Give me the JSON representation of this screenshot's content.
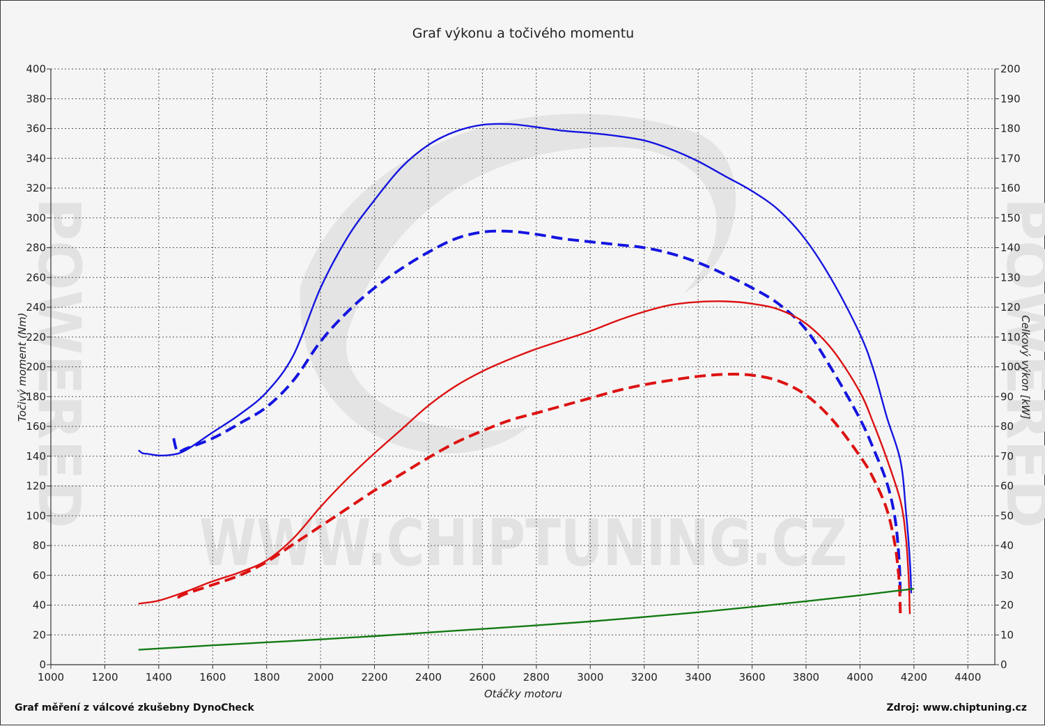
{
  "chart_data": {
    "type": "line",
    "title": "Graf výkonu a točivého momentu",
    "xlabel": "Otáčky motoru",
    "ylabel_left": "Točivý moment (Nm)",
    "ylabel_right": "Celkový výkon [kW]",
    "xlim": [
      1000,
      4500
    ],
    "ylim_left": [
      0,
      400
    ],
    "ylim_right": [
      0,
      200
    ],
    "x_ticks": [
      1000,
      1200,
      1400,
      1600,
      1800,
      2000,
      2200,
      2400,
      2600,
      2800,
      3000,
      3200,
      3400,
      3600,
      3800,
      4000,
      4200,
      4400
    ],
    "y_ticks_left": [
      0,
      20,
      40,
      60,
      80,
      100,
      120,
      140,
      160,
      180,
      200,
      220,
      240,
      260,
      280,
      300,
      320,
      340,
      360,
      380,
      400
    ],
    "y_ticks_right": [
      0,
      10,
      20,
      30,
      40,
      50,
      60,
      70,
      80,
      90,
      100,
      110,
      120,
      130,
      140,
      150,
      160,
      170,
      180,
      190,
      200
    ],
    "grid": true,
    "series": [
      {
        "axis": "left",
        "color": "#1414e0",
        "style": "solid",
        "points": [
          [
            1325,
            144
          ],
          [
            1340,
            142
          ],
          [
            1360,
            141.5
          ],
          [
            1400,
            140.5
          ],
          [
            1450,
            141
          ],
          [
            1500,
            144
          ],
          [
            1600,
            156
          ],
          [
            1700,
            168
          ],
          [
            1800,
            183
          ],
          [
            1900,
            208
          ],
          [
            2000,
            253
          ],
          [
            2100,
            287
          ],
          [
            2200,
            312
          ],
          [
            2300,
            334
          ],
          [
            2400,
            349
          ],
          [
            2500,
            358
          ],
          [
            2600,
            362.5
          ],
          [
            2700,
            363
          ],
          [
            2800,
            361
          ],
          [
            2900,
            358.5
          ],
          [
            3000,
            357
          ],
          [
            3100,
            355
          ],
          [
            3200,
            352
          ],
          [
            3300,
            346
          ],
          [
            3400,
            338
          ],
          [
            3500,
            328
          ],
          [
            3600,
            318
          ],
          [
            3700,
            305
          ],
          [
            3800,
            285
          ],
          [
            3900,
            257
          ],
          [
            4000,
            222
          ],
          [
            4050,
            198
          ],
          [
            4100,
            166
          ],
          [
            4150,
            137
          ],
          [
            4170,
            104
          ],
          [
            4185,
            70
          ],
          [
            4190,
            48
          ]
        ]
      },
      {
        "axis": "left",
        "color": "#1414e0",
        "style": "dashed",
        "points": [
          [
            1455,
            152
          ],
          [
            1470,
            143
          ],
          [
            1500,
            145
          ],
          [
            1600,
            152
          ],
          [
            1700,
            162
          ],
          [
            1800,
            173
          ],
          [
            1900,
            191
          ],
          [
            2000,
            217
          ],
          [
            2100,
            237
          ],
          [
            2200,
            253
          ],
          [
            2300,
            266
          ],
          [
            2400,
            277
          ],
          [
            2500,
            286
          ],
          [
            2600,
            290.5
          ],
          [
            2700,
            291
          ],
          [
            2800,
            289
          ],
          [
            2900,
            286
          ],
          [
            3000,
            284
          ],
          [
            3100,
            282
          ],
          [
            3200,
            280
          ],
          [
            3300,
            276
          ],
          [
            3400,
            270
          ],
          [
            3500,
            262
          ],
          [
            3600,
            253
          ],
          [
            3700,
            242
          ],
          [
            3800,
            225
          ],
          [
            3900,
            197
          ],
          [
            4000,
            165
          ],
          [
            4050,
            145
          ],
          [
            4100,
            122
          ],
          [
            4130,
            98
          ],
          [
            4145,
            70
          ],
          [
            4150,
            45
          ]
        ]
      },
      {
        "axis": "right",
        "color": "#dd1111",
        "style": "solid",
        "points": [
          [
            1325,
            20.5
          ],
          [
            1400,
            21.5
          ],
          [
            1500,
            24.5
          ],
          [
            1600,
            28
          ],
          [
            1700,
            31
          ],
          [
            1800,
            35
          ],
          [
            1900,
            42.5
          ],
          [
            2000,
            53
          ],
          [
            2100,
            62.5
          ],
          [
            2200,
            71
          ],
          [
            2300,
            79
          ],
          [
            2400,
            87
          ],
          [
            2500,
            93.5
          ],
          [
            2600,
            98.5
          ],
          [
            2700,
            102.5
          ],
          [
            2800,
            106
          ],
          [
            2900,
            109
          ],
          [
            3000,
            112
          ],
          [
            3100,
            115.5
          ],
          [
            3200,
            118.5
          ],
          [
            3300,
            120.8
          ],
          [
            3400,
            121.8
          ],
          [
            3500,
            122
          ],
          [
            3600,
            121.2
          ],
          [
            3700,
            119.2
          ],
          [
            3800,
            114.5
          ],
          [
            3900,
            105.5
          ],
          [
            4000,
            91.5
          ],
          [
            4050,
            81
          ],
          [
            4100,
            69
          ],
          [
            4150,
            55
          ],
          [
            4170,
            43
          ],
          [
            4180,
            30
          ],
          [
            4185,
            17
          ]
        ]
      },
      {
        "axis": "right",
        "color": "#dd1111",
        "style": "dashed",
        "points": [
          [
            1470,
            22.5
          ],
          [
            1500,
            23.8
          ],
          [
            1600,
            26.8
          ],
          [
            1700,
            30
          ],
          [
            1800,
            34.5
          ],
          [
            1900,
            40.5
          ],
          [
            2000,
            46.5
          ],
          [
            2100,
            52.5
          ],
          [
            2200,
            58.5
          ],
          [
            2300,
            64
          ],
          [
            2400,
            69.5
          ],
          [
            2500,
            74.5
          ],
          [
            2600,
            78.5
          ],
          [
            2700,
            82
          ],
          [
            2800,
            84.5
          ],
          [
            2900,
            87
          ],
          [
            3000,
            89.5
          ],
          [
            3100,
            92
          ],
          [
            3200,
            94
          ],
          [
            3300,
            95.5
          ],
          [
            3400,
            96.8
          ],
          [
            3500,
            97.5
          ],
          [
            3600,
            97.2
          ],
          [
            3700,
            95.2
          ],
          [
            3800,
            90.5
          ],
          [
            3900,
            82
          ],
          [
            4000,
            70
          ],
          [
            4050,
            62.5
          ],
          [
            4100,
            52
          ],
          [
            4130,
            40
          ],
          [
            4145,
            28
          ],
          [
            4150,
            16
          ]
        ]
      },
      {
        "axis": "right",
        "color": "#137a13",
        "style": "solid",
        "points": [
          [
            1325,
            5
          ],
          [
            1600,
            6.5
          ],
          [
            1800,
            7.5
          ],
          [
            2000,
            8.5
          ],
          [
            2200,
            9.6
          ],
          [
            2400,
            10.8
          ],
          [
            2600,
            12
          ],
          [
            2800,
            13.2
          ],
          [
            3000,
            14.5
          ],
          [
            3200,
            16
          ],
          [
            3400,
            17.6
          ],
          [
            3600,
            19.4
          ],
          [
            3800,
            21.3
          ],
          [
            4000,
            23.3
          ],
          [
            4100,
            24.4
          ],
          [
            4200,
            25.5
          ]
        ]
      }
    ]
  },
  "watermark": {
    "url": "WWW.CHIPTUNING.CZ",
    "brand": "POWERED"
  },
  "footer": {
    "left": "Graf měření z válcové zkušebny DynoCheck",
    "right": "Zdroj: www.chiptuning.cz"
  }
}
